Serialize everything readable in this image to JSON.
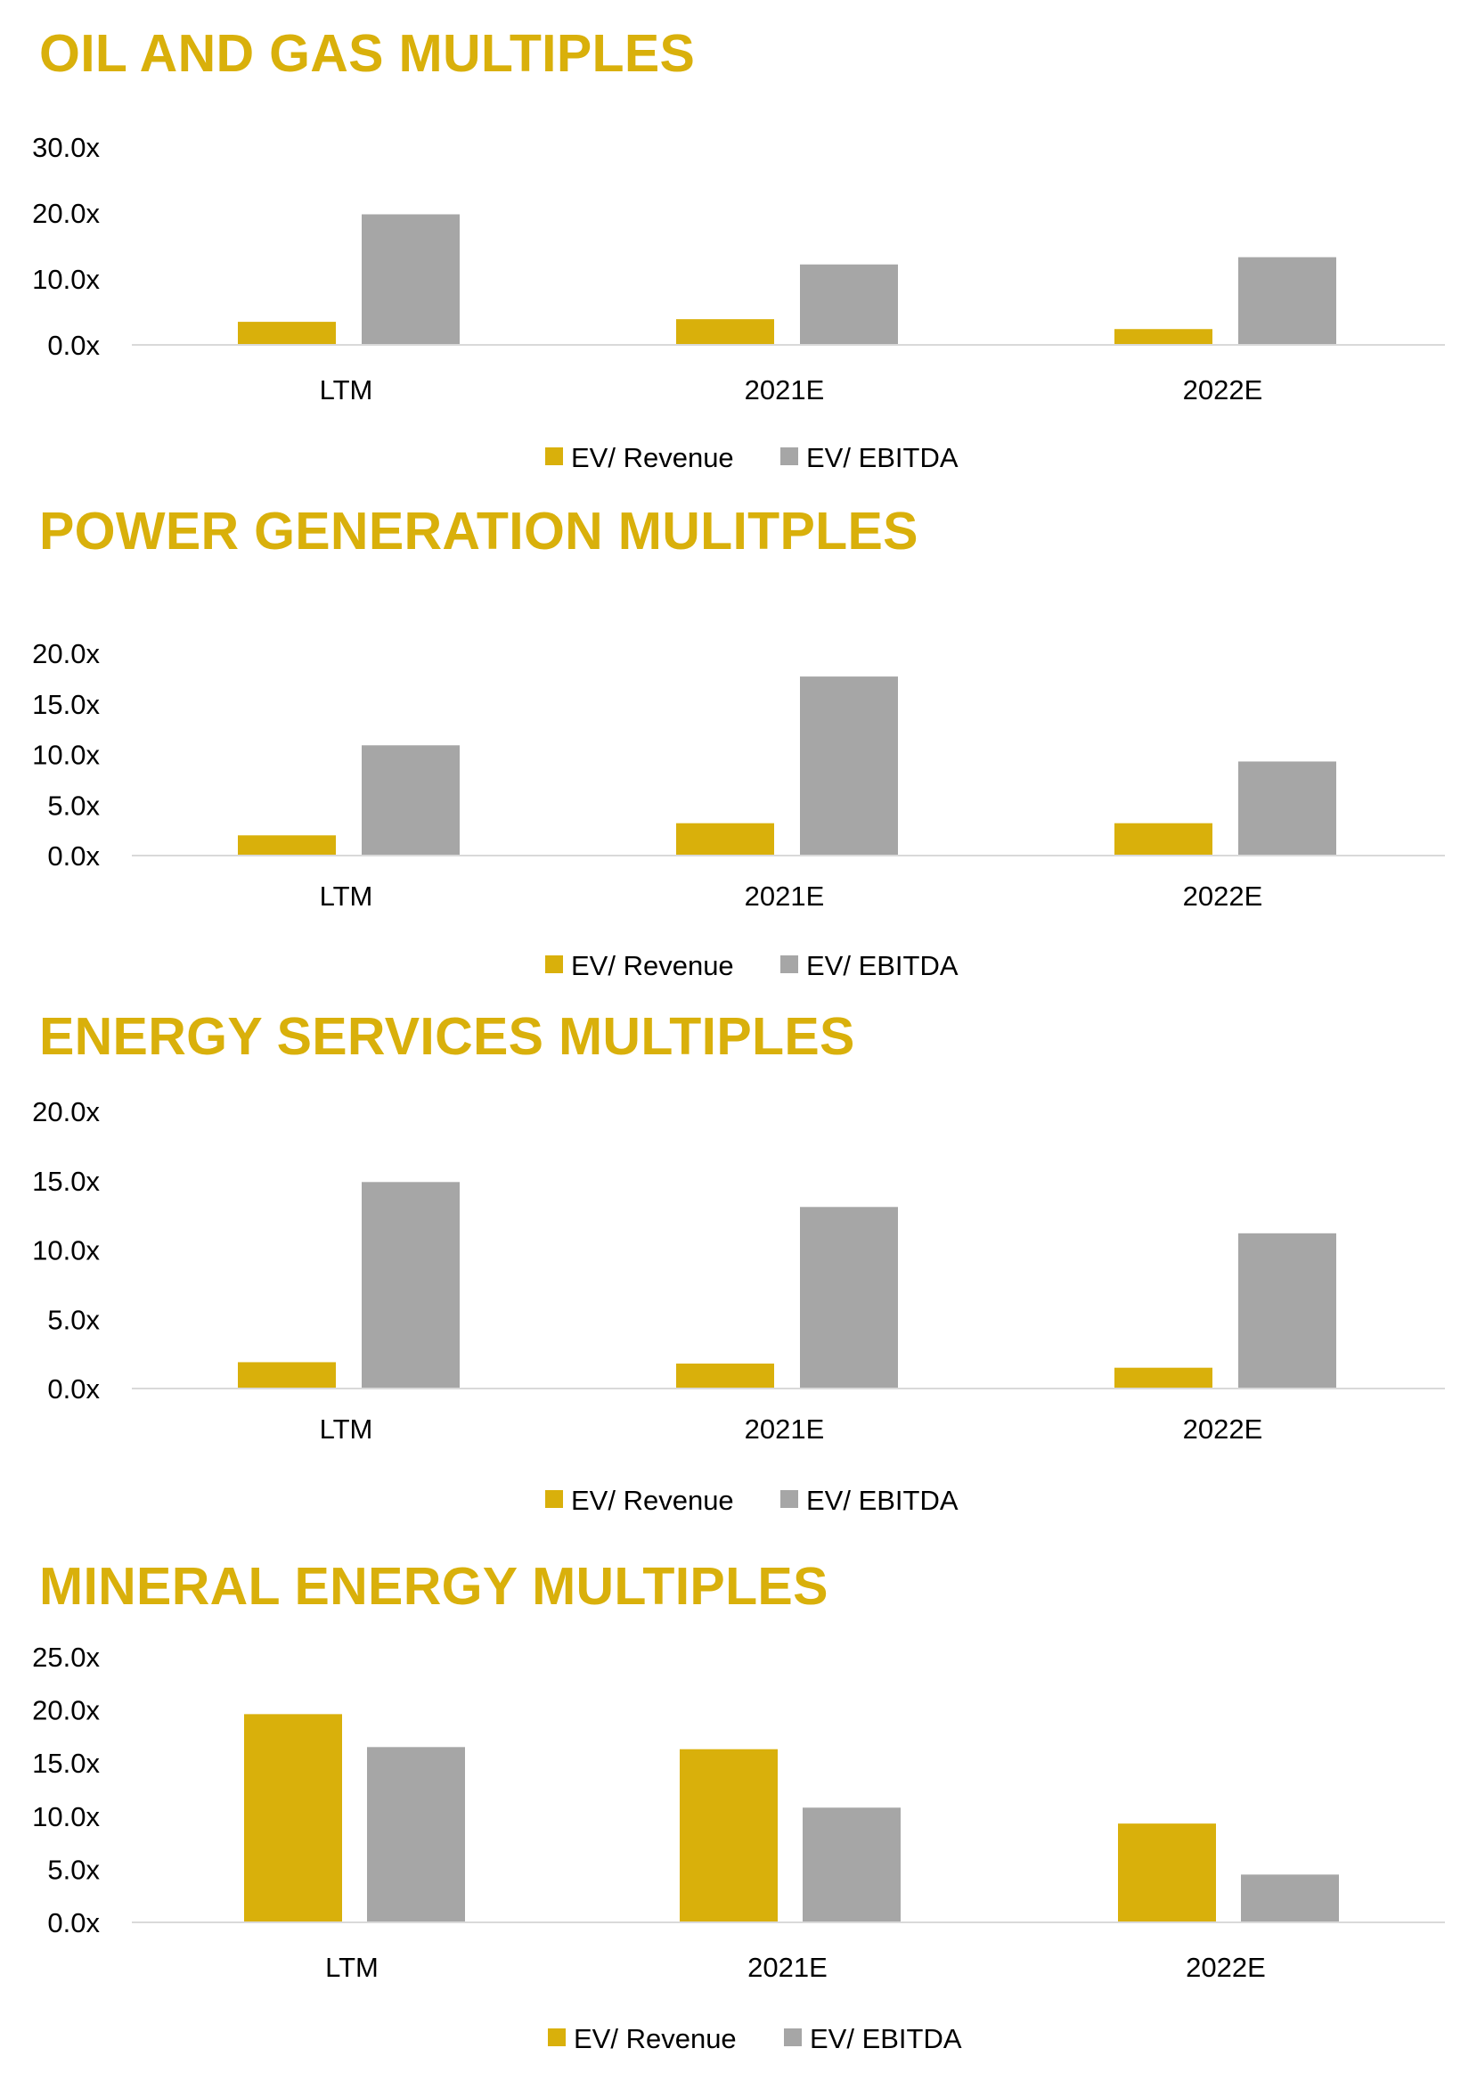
{
  "colors": {
    "title": "#D9B00B",
    "revenue": "#D9B00B",
    "ebitda": "#A6A6A6",
    "axis_line": "#D9D9D9",
    "text": "#000000",
    "blue_text": "#1F3864"
  },
  "chart_data": [
    {
      "type": "bar",
      "title": "OIL AND GAS MULTIPLES",
      "categories": [
        "LTM",
        "2021E",
        "2022E"
      ],
      "series": [
        {
          "name": "EV/ Revenue",
          "values": [
            3.5,
            3.9,
            2.4
          ]
        },
        {
          "name": "EV/ EBITDA",
          "values": [
            19.8,
            12.2,
            13.3
          ]
        }
      ],
      "ylim": [
        0,
        30
      ],
      "yticks": [
        0,
        10,
        20,
        30
      ],
      "ytick_labels": [
        "0.0x",
        "10.0x",
        "20.0x",
        "30.0x"
      ],
      "xlabel": "",
      "ylabel": "",
      "grid": false,
      "legend_position": "bottom",
      "label_color": "#000000"
    },
    {
      "type": "bar",
      "title": "POWER GENERATION MULITPLES",
      "categories": [
        "LTM",
        "2021E",
        "2022E"
      ],
      "series": [
        {
          "name": "EV/ Revenue",
          "values": [
            2.0,
            3.2,
            3.2
          ]
        },
        {
          "name": "EV/ EBITDA",
          "values": [
            10.9,
            17.7,
            9.3
          ]
        }
      ],
      "ylim": [
        0,
        20
      ],
      "yticks": [
        0,
        5,
        10,
        15,
        20
      ],
      "ytick_labels": [
        "0.0x",
        "5.0x",
        "10.0x",
        "15.0x",
        "20.0x"
      ],
      "xlabel": "",
      "ylabel": "",
      "grid": false,
      "legend_position": "bottom",
      "label_color": "#000000"
    },
    {
      "type": "bar",
      "title": "ENERGY SERVICES MULTIPLES",
      "categories": [
        "LTM",
        "2021E",
        "2022E"
      ],
      "series": [
        {
          "name": "EV/ Revenue",
          "values": [
            1.9,
            1.8,
            1.5
          ]
        },
        {
          "name": "EV/ EBITDA",
          "values": [
            14.9,
            13.1,
            11.2
          ]
        }
      ],
      "ylim": [
        0,
        20
      ],
      "yticks": [
        0,
        5,
        10,
        15,
        20
      ],
      "ytick_labels": [
        "0.0x",
        "5.0x",
        "10.0x",
        "15.0x",
        "20.0x"
      ],
      "xlabel": "",
      "ylabel": "",
      "grid": false,
      "legend_position": "bottom",
      "label_color": "#1F3864"
    },
    {
      "type": "bar",
      "title": "MINERAL ENERGY MULTIPLES",
      "categories": [
        "LTM",
        "2021E",
        "2022E"
      ],
      "series": [
        {
          "name": "EV/ Revenue",
          "values": [
            19.6,
            16.3,
            9.3
          ]
        },
        {
          "name": "EV/ EBITDA",
          "values": [
            16.5,
            10.8,
            4.5
          ]
        }
      ],
      "ylim": [
        0,
        25
      ],
      "yticks": [
        0,
        5,
        10,
        15,
        20,
        25
      ],
      "ytick_labels": [
        "0.0x",
        "5.0x",
        "10.0x",
        "15.0x",
        "20.0x",
        "25.0x"
      ],
      "xlabel": "",
      "ylabel": "",
      "grid": false,
      "legend_position": "bottom",
      "label_color": "#000000"
    }
  ]
}
